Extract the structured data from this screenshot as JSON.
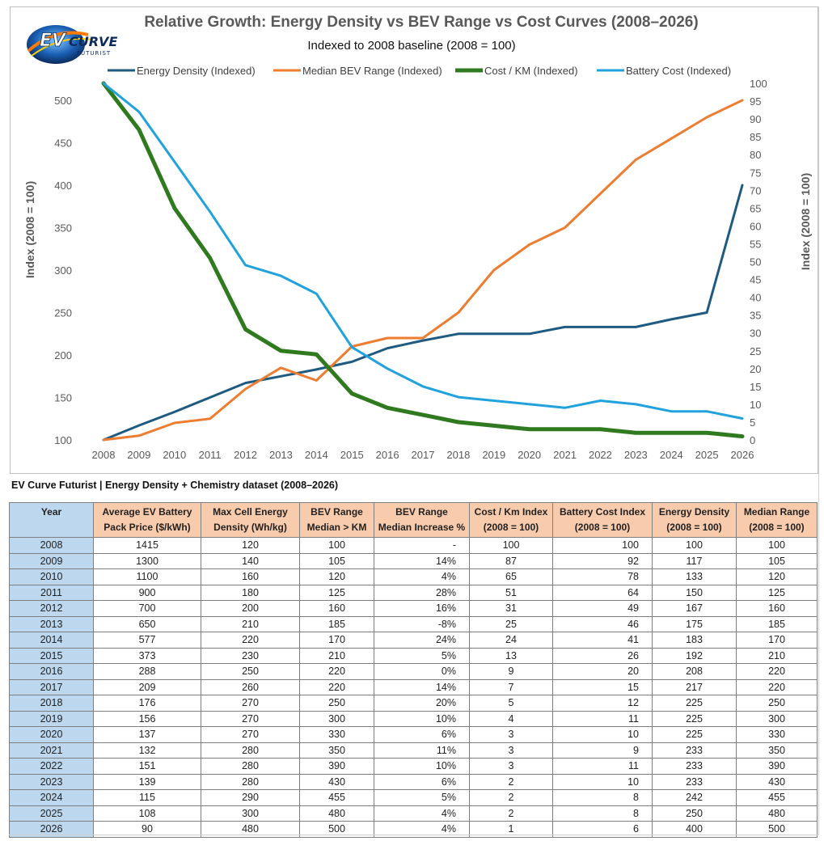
{
  "chart_data": {
    "type": "line",
    "title": "Relative Growth: Energy Density vs BEV Range vs Cost Curves  (2008–2026)",
    "subtitle": "Indexed to 2008 baseline (2008 = 100)",
    "ylabel_left": "Index (2008 = 100)",
    "ylabel_right": "Index (2008 = 100)",
    "x": [
      2008,
      2009,
      2010,
      2011,
      2012,
      2013,
      2014,
      2015,
      2016,
      2017,
      2018,
      2019,
      2020,
      2021,
      2022,
      2023,
      2024,
      2025,
      2026
    ],
    "ylim_left": [
      100,
      520
    ],
    "yticks_left": [
      100,
      150,
      200,
      250,
      300,
      350,
      400,
      450,
      500
    ],
    "ylim_right": [
      0,
      100
    ],
    "yticks_right": [
      0,
      5,
      10,
      15,
      20,
      25,
      30,
      35,
      40,
      45,
      50,
      55,
      60,
      65,
      70,
      75,
      80,
      85,
      90,
      95,
      100
    ],
    "legend_position": "top",
    "series": [
      {
        "name": "Energy Density (Indexed)",
        "axis": "left",
        "color": "#1f5a80",
        "values": [
          100,
          117,
          133,
          150,
          167,
          175,
          183,
          192,
          208,
          217,
          225,
          225,
          225,
          233,
          233,
          233,
          242,
          250,
          400
        ]
      },
      {
        "name": "Median BEV Range (Indexed)",
        "axis": "left",
        "color": "#ed7d31",
        "values": [
          100,
          105,
          120,
          125,
          160,
          185,
          170,
          210,
          220,
          220,
          250,
          300,
          330,
          350,
          390,
          430,
          455,
          480,
          500
        ]
      },
      {
        "name": "Cost / KM (Indexed)",
        "axis": "right",
        "color": "#2f7a1f",
        "values": [
          100,
          87,
          65,
          51,
          31,
          25,
          24,
          13,
          9,
          7,
          5,
          4,
          3,
          3,
          3,
          2,
          2,
          2,
          1
        ]
      },
      {
        "name": "Battery Cost (Indexed)",
        "axis": "right",
        "color": "#21a2dc",
        "values": [
          100,
          92,
          78,
          64,
          49,
          46,
          41,
          26,
          20,
          15,
          12,
          11,
          10,
          9,
          11,
          10,
          8,
          8,
          6
        ]
      }
    ]
  },
  "logo": {
    "text": "EVCURVE",
    "subtext": "FUTURIST"
  },
  "dataset_title": "EV Curve Futurist | Energy Density + Chemistry dataset (2008–2026)",
  "table": {
    "headers": [
      [
        "Year"
      ],
      [
        "Average EV Battery",
        "Pack Price ($/kWh)"
      ],
      [
        "Max Cell Energy",
        "Density (Wh/kg)"
      ],
      [
        "BEV Range",
        "Median > KM"
      ],
      [
        "BEV Range",
        "Median Increase %"
      ],
      [
        "Cost / Km Index",
        "(2008 = 100)"
      ],
      [
        "Battery Cost Index",
        "(2008 = 100)"
      ],
      [
        "Energy Density",
        "(2008 = 100)"
      ],
      [
        "Median Range",
        "(2008 = 100)"
      ]
    ],
    "rows": [
      [
        "2008",
        "1415",
        "120",
        "100",
        "-",
        "100",
        "100",
        "100",
        "100"
      ],
      [
        "2009",
        "1300",
        "140",
        "105",
        "14%",
        "87",
        "92",
        "117",
        "105"
      ],
      [
        "2010",
        "1100",
        "160",
        "120",
        "4%",
        "65",
        "78",
        "133",
        "120"
      ],
      [
        "2011",
        "900",
        "180",
        "125",
        "28%",
        "51",
        "64",
        "150",
        "125"
      ],
      [
        "2012",
        "700",
        "200",
        "160",
        "16%",
        "31",
        "49",
        "167",
        "160"
      ],
      [
        "2013",
        "650",
        "210",
        "185",
        "-8%",
        "25",
        "46",
        "175",
        "185"
      ],
      [
        "2014",
        "577",
        "220",
        "170",
        "24%",
        "24",
        "41",
        "183",
        "170"
      ],
      [
        "2015",
        "373",
        "230",
        "210",
        "5%",
        "13",
        "26",
        "192",
        "210"
      ],
      [
        "2016",
        "288",
        "250",
        "220",
        "0%",
        "9",
        "20",
        "208",
        "220"
      ],
      [
        "2017",
        "209",
        "260",
        "220",
        "14%",
        "7",
        "15",
        "217",
        "220"
      ],
      [
        "2018",
        "176",
        "270",
        "250",
        "20%",
        "5",
        "12",
        "225",
        "250"
      ],
      [
        "2019",
        "156",
        "270",
        "300",
        "10%",
        "4",
        "11",
        "225",
        "300"
      ],
      [
        "2020",
        "137",
        "270",
        "330",
        "6%",
        "3",
        "10",
        "225",
        "330"
      ],
      [
        "2021",
        "132",
        "280",
        "350",
        "11%",
        "3",
        "9",
        "233",
        "350"
      ],
      [
        "2022",
        "151",
        "280",
        "390",
        "10%",
        "3",
        "11",
        "233",
        "390"
      ],
      [
        "2023",
        "139",
        "280",
        "430",
        "6%",
        "2",
        "10",
        "233",
        "430"
      ],
      [
        "2024",
        "115",
        "290",
        "455",
        "5%",
        "2",
        "8",
        "242",
        "455"
      ],
      [
        "2025",
        "108",
        "300",
        "480",
        "4%",
        "2",
        "8",
        "250",
        "480"
      ],
      [
        "2026",
        "90",
        "480",
        "500",
        "4%",
        "1",
        "6",
        "400",
        "500"
      ]
    ]
  }
}
